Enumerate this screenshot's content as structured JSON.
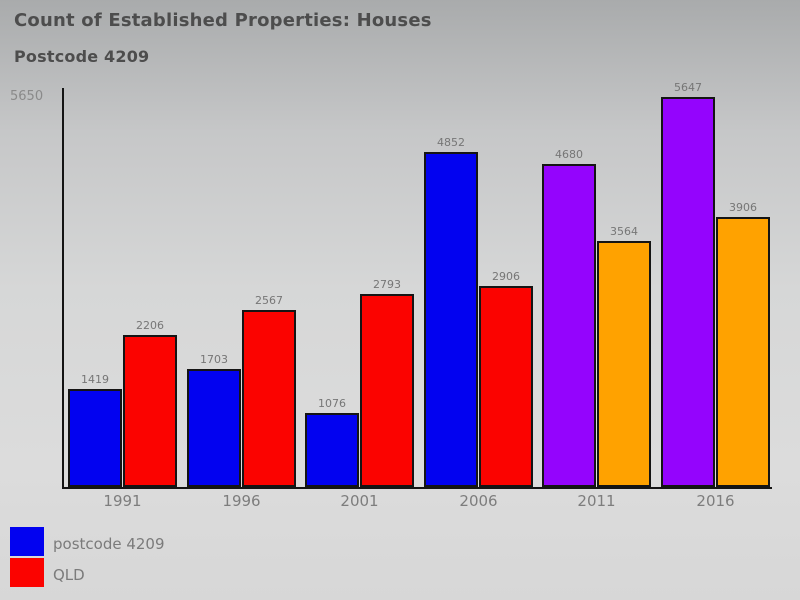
{
  "title": "Count of Established Properties: Houses",
  "subtitle": "Postcode 4209",
  "y_axis_max_label": "5650",
  "legend": [
    {
      "label": "postcode 4209",
      "color": "#0202f0"
    },
    {
      "label": "QLD",
      "color": "#fb0300"
    }
  ],
  "chart_data": {
    "type": "bar",
    "title": "Count of Established Properties: Houses",
    "subtitle": "Postcode 4209",
    "categories": [
      "1991",
      "1996",
      "2001",
      "2006",
      "2011",
      "2016"
    ],
    "series": [
      {
        "name": "postcode 4209",
        "values": [
          1419,
          1703,
          1076,
          4852,
          4680,
          5647
        ],
        "colors": [
          "#0202f0",
          "#0202f0",
          "#0202f0",
          "#0202f0",
          "#9404fd",
          "#9404fd"
        ]
      },
      {
        "name": "QLD",
        "values": [
          2206,
          2567,
          2793,
          2906,
          3564,
          3906
        ],
        "colors": [
          "#fb0300",
          "#fb0300",
          "#fb0300",
          "#fb0300",
          "#ffa200",
          "#ffa200"
        ]
      }
    ],
    "ylim": [
      0,
      5650
    ],
    "grid": false,
    "value_labels": true,
    "legend_position": "bottom-left"
  },
  "colors": {
    "bar_border": "#141414",
    "axis": "#141414",
    "title_text": "#4d4d4d",
    "label_text": "#767676"
  }
}
